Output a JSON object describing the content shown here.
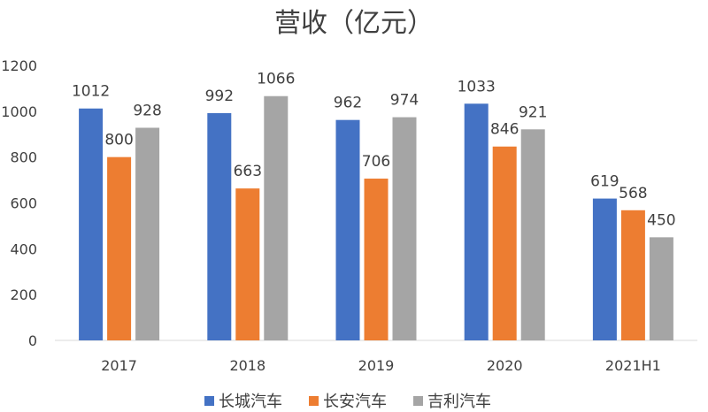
{
  "chart_data": {
    "type": "bar",
    "title": "营收（亿元）",
    "categories": [
      "2017",
      "2018",
      "2019",
      "2020",
      "2021H1"
    ],
    "series": [
      {
        "name": "长城汽车",
        "color": "#4472C4",
        "values": [
          1012,
          992,
          962,
          1033,
          619
        ]
      },
      {
        "name": "长安汽车",
        "color": "#ED7D31",
        "values": [
          800,
          663,
          706,
          846,
          568
        ]
      },
      {
        "name": "吉利汽车",
        "color": "#A5A5A5",
        "values": [
          928,
          1066,
          974,
          921,
          450
        ]
      }
    ],
    "yticks": [
      0,
      200,
      400,
      600,
      800,
      1000,
      1200
    ],
    "ylim": [
      0,
      1200
    ],
    "grid": false,
    "legend": "bottom",
    "data_labels": true
  }
}
